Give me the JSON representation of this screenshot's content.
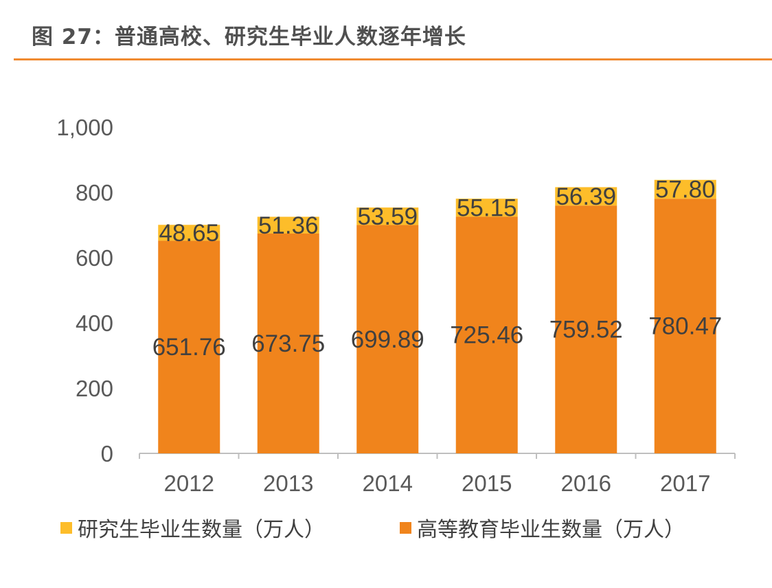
{
  "title": "图 27：普通高校、研究生毕业人数逐年增长",
  "chart_data": {
    "type": "bar",
    "stacked": true,
    "title": "图 27：普通高校、研究生毕业人数逐年增长",
    "categories": [
      "2012",
      "2013",
      "2014",
      "2015",
      "2016",
      "2017"
    ],
    "series": [
      {
        "name": "高等教育毕业生数量（万人）",
        "color": "#f0841c",
        "values": [
          651.76,
          673.75,
          699.89,
          725.46,
          759.52,
          780.47
        ],
        "labels": [
          "651.76",
          "673.75",
          "699.89",
          "725.46",
          "759.52",
          "780.47"
        ]
      },
      {
        "name": "研究生毕业生数量（万人）",
        "color": "#fdbd2a",
        "values": [
          48.65,
          51.36,
          53.59,
          55.15,
          56.39,
          57.8
        ],
        "labels": [
          "48.65",
          "51.36",
          "53.59",
          "55.15",
          "56.39",
          "57.80"
        ]
      }
    ],
    "yticks": [
      "0",
      "200",
      "400",
      "600",
      "800",
      "1,000"
    ],
    "ytick_values": [
      0,
      200,
      400,
      600,
      800,
      1000
    ],
    "ylim": [
      0,
      1000
    ],
    "xlabel": "",
    "ylabel": "",
    "grid": false,
    "legend": [
      "研究生毕业生数量（万人）",
      "高等教育毕业生数量（万人）"
    ],
    "legend_position": "bottom"
  },
  "colors": {
    "accent": "#f08a30",
    "grad": "#fdbd2a",
    "higher": "#f0841c"
  }
}
